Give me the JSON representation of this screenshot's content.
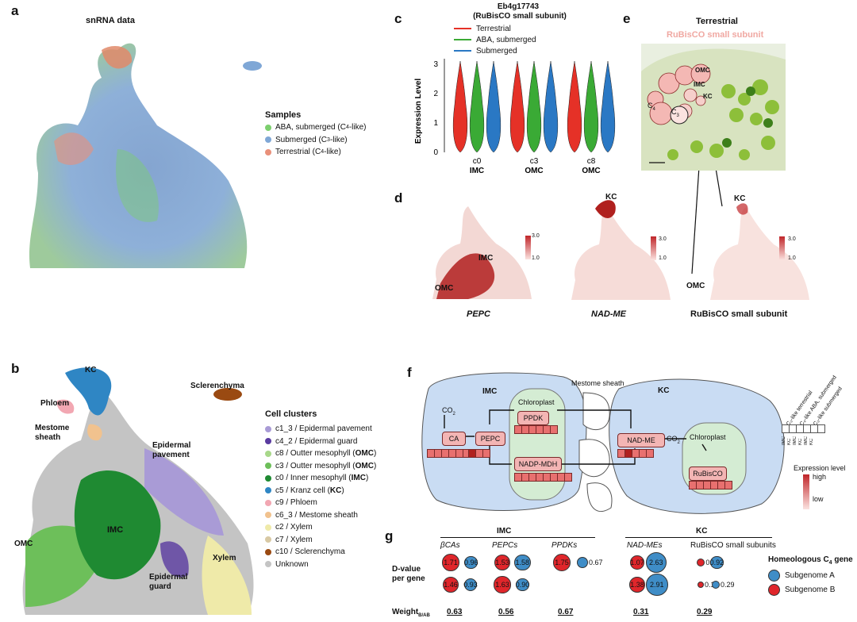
{
  "panels": {
    "a": "a",
    "b": "b",
    "c": "c",
    "d": "d",
    "e": "e",
    "f": "f",
    "g": "g"
  },
  "colors": {
    "aba": "#7ccf6e",
    "submerged": "#7fa7d6",
    "terrestrial": "#e9907a",
    "violin_red": "#e53127",
    "violin_green": "#3aaa35",
    "violin_blue": "#2a78c4",
    "heat": "#c0262a",
    "bubbleA": "#3f8dc7",
    "bubbleB": "#e0262b"
  },
  "panel_a": {
    "title": "snRNA data",
    "legend_title": "Samples",
    "samples": [
      {
        "label": "ABA, submerged (C",
        "sub": "4",
        "tail": "-like)",
        "color": "#7ccf6e"
      },
      {
        "label": "Submerged (C",
        "sub": "3",
        "tail": "-like)",
        "color": "#7fa7d6"
      },
      {
        "label": "Terrestrial (C",
        "sub": "4",
        "tail": "-like)",
        "color": "#e9907a"
      }
    ]
  },
  "panel_b": {
    "legend_title": "Cell clusters",
    "clusters": [
      {
        "pre": "c1_3 / Epidermal pavement",
        "b": "",
        "post": "",
        "color": "#a99bd6"
      },
      {
        "pre": "c4_2 / Epidermal guard",
        "b": "",
        "post": "",
        "color": "#5a3ba0"
      },
      {
        "pre": "c8 / Outter mesophyll (",
        "b": "OMC",
        "post": ")",
        "color": "#a8d88a"
      },
      {
        "pre": "c3 / Outter mesophyll (",
        "b": "OMC",
        "post": ")",
        "color": "#6dbf5a"
      },
      {
        "pre": "c0 / Inner mesophyll (",
        "b": "IMC",
        "post": ")",
        "color": "#1f8a32"
      },
      {
        "pre": "c5 / Kranz cell (",
        "b": "KC",
        "post": ")",
        "color": "#2f86c4"
      },
      {
        "pre": "c9 / Phloem",
        "b": "",
        "post": "",
        "color": "#f2a7b2"
      },
      {
        "pre": "c6_3 / Mestome sheath",
        "b": "",
        "post": "",
        "color": "#f1c28e"
      },
      {
        "pre": "c2 / Xylem",
        "b": "",
        "post": "",
        "color": "#efeaa9"
      },
      {
        "pre": "c7 / Xylem",
        "b": "",
        "post": "",
        "color": "#d8c9a4"
      },
      {
        "pre": "c10 / Sclerenchyma",
        "b": "",
        "post": "",
        "color": "#9a4a12"
      },
      {
        "pre": "Unknown",
        "b": "",
        "post": "",
        "color": "#c4c4c4"
      }
    ],
    "labels": {
      "kc": "KC",
      "phloem": "Phloem",
      "mestome": "Mestome",
      "sheath": "sheath",
      "scler": "Sclerenchyma",
      "epi_pav1": "Epidermal",
      "epi_pav2": "pavement",
      "imc": "IMC",
      "omc": "OMC",
      "xylem": "Xylem",
      "epi_g1": "Epidermal",
      "epi_g2": "guard"
    }
  },
  "panel_c": {
    "gene": "Eb4g17743",
    "gene_name": "(RuBisCO small subunit)",
    "legend": [
      {
        "label": "Terrestrial",
        "color": "#e53127"
      },
      {
        "label": "ABA, submerged",
        "color": "#3aaa35"
      },
      {
        "label": "Submerged",
        "color": "#2a78c4"
      }
    ],
    "ylabel": "Expression Level",
    "yticks": [
      "0",
      "1",
      "2",
      "3"
    ],
    "groups": [
      {
        "cluster": "c0",
        "cell": "IMC"
      },
      {
        "cluster": "c3",
        "cell": "OMC"
      },
      {
        "cluster": "c8",
        "cell": "OMC"
      }
    ]
  },
  "panel_d": {
    "genes": [
      {
        "name": "PEPC",
        "italic": true
      },
      {
        "name": "NAD-ME",
        "italic": true
      },
      {
        "name": "RuBisCO small subunit",
        "italic": false
      }
    ],
    "scale_hi": "3.0",
    "scale_lo": "1.0",
    "labels": {
      "imc": "IMC",
      "omc": "OMC",
      "kc": "KC",
      "kc2": "KC",
      "omc2": "OMC"
    }
  },
  "panel_e": {
    "title": "Terrestrial",
    "subtitle": "RuBisCO small subunit",
    "cells": {
      "omc": "OMC",
      "imc": "IMC",
      "kc": "KC",
      "c4": "C",
      "c4sub": "4",
      "c3": "C",
      "c3sub": "3"
    }
  },
  "panel_f": {
    "imc": "IMC",
    "kc": "KC",
    "mestome": "Mestome sheath",
    "chloroplast": "Chloroplast",
    "co2": "CO",
    "co2sub": "2",
    "co2b": "CO",
    "co2bsub": "2",
    "enzymes": {
      "ca": "CA",
      "pepc": "PEPC",
      "ppdk": "PPDK",
      "nadpmdh": "NADP-MDH",
      "nadme": "NAD-ME",
      "rubisco": "RuBisCO"
    },
    "col_labels": [
      "C₃-like terrestrial",
      "C₄-like ABA, submerged",
      "C₃-like submerged"
    ],
    "mini_labels": [
      "IMC",
      "KC",
      "IMC",
      "KC",
      "IMC",
      "KC"
    ],
    "expr_title": "Expression level",
    "expr_high": "high",
    "expr_low": "low"
  },
  "panel_g": {
    "imc": "IMC",
    "kc": "KC",
    "groups": [
      {
        "name": "βCAs",
        "top": [
          {
            "v": "1.71",
            "s": "B"
          },
          {
            "v": "0.96",
            "s": "A"
          }
        ],
        "bot": [
          {
            "v": "1.46",
            "s": "B"
          },
          {
            "v": "0.93",
            "s": "A"
          }
        ],
        "weight": "0.63"
      },
      {
        "name": "PEPCs",
        "top": [
          {
            "v": "1.53",
            "s": "B"
          },
          {
            "v": "1.58",
            "s": "A"
          }
        ],
        "bot": [
          {
            "v": "1.63",
            "s": "B"
          },
          {
            "v": "0.90",
            "s": "A"
          }
        ],
        "weight": "0.56"
      },
      {
        "name": "PPDKs",
        "top": [
          {
            "v": "1.75",
            "s": "B"
          },
          {
            "v": "0.67",
            "s": "A"
          }
        ],
        "bot": [],
        "weight": "0.67"
      },
      {
        "name": "NAD-MEs",
        "top": [
          {
            "v": "1.07",
            "s": "B"
          },
          {
            "v": "2.63",
            "s": "A"
          }
        ],
        "bot": [
          {
            "v": "1.38",
            "s": "B"
          },
          {
            "v": "2.91",
            "s": "A"
          }
        ],
        "weight": "0.31"
      },
      {
        "name": "RuBisCO small subunits",
        "top": [
          {
            "v": "0.35",
            "s": "B"
          },
          {
            "v": "0.92",
            "s": "A"
          }
        ],
        "bot": [
          {
            "v": "0.16",
            "s": "B"
          },
          {
            "v": "0.29",
            "s": "A"
          }
        ],
        "weight": "0.29"
      }
    ],
    "dvalue1": "D-value",
    "dvalue2": "per gene",
    "weight_label": "Weight",
    "weight_sub": "B/AB",
    "legend_title": "Homeologous C",
    "legend_sub": "4",
    "legend_tail": " gene",
    "legend": [
      {
        "label": "Subgenome A",
        "color": "#3f8dc7"
      },
      {
        "label": "Subgenome B",
        "color": "#e0262b"
      }
    ]
  }
}
